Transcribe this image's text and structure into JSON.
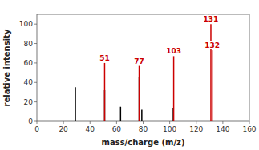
{
  "chart_data": {
    "type": "stem",
    "xlabel": "mass/charge (m/z)",
    "ylabel": "relative intensity",
    "series": [
      {
        "color": "#000000",
        "x": [
          29,
          51,
          63,
          77,
          79,
          102
        ],
        "values": [
          35,
          32,
          15,
          46,
          12,
          14
        ]
      },
      {
        "color": "#cc0000",
        "x": [
          51,
          77,
          103,
          131,
          132
        ],
        "values": [
          60,
          57,
          67,
          100,
          73
        ]
      }
    ],
    "annotations": [
      {
        "text": "51",
        "x": 51,
        "y": 60,
        "color": "#cc0000"
      },
      {
        "text": "77",
        "x": 77,
        "y": 57,
        "color": "#cc0000"
      },
      {
        "text": "103",
        "x": 103,
        "y": 67,
        "color": "#cc0000"
      },
      {
        "text": "131",
        "x": 131,
        "y": 100,
        "color": "#cc0000"
      },
      {
        "text": "132",
        "x": 132,
        "y": 73,
        "color": "#cc0000"
      }
    ],
    "xlim": [
      0,
      160
    ],
    "ylim": [
      0,
      110
    ],
    "xticks": [
      0,
      20,
      40,
      60,
      80,
      100,
      120,
      140,
      160
    ],
    "yticks": [
      0,
      20,
      40,
      60,
      80,
      100
    ]
  }
}
